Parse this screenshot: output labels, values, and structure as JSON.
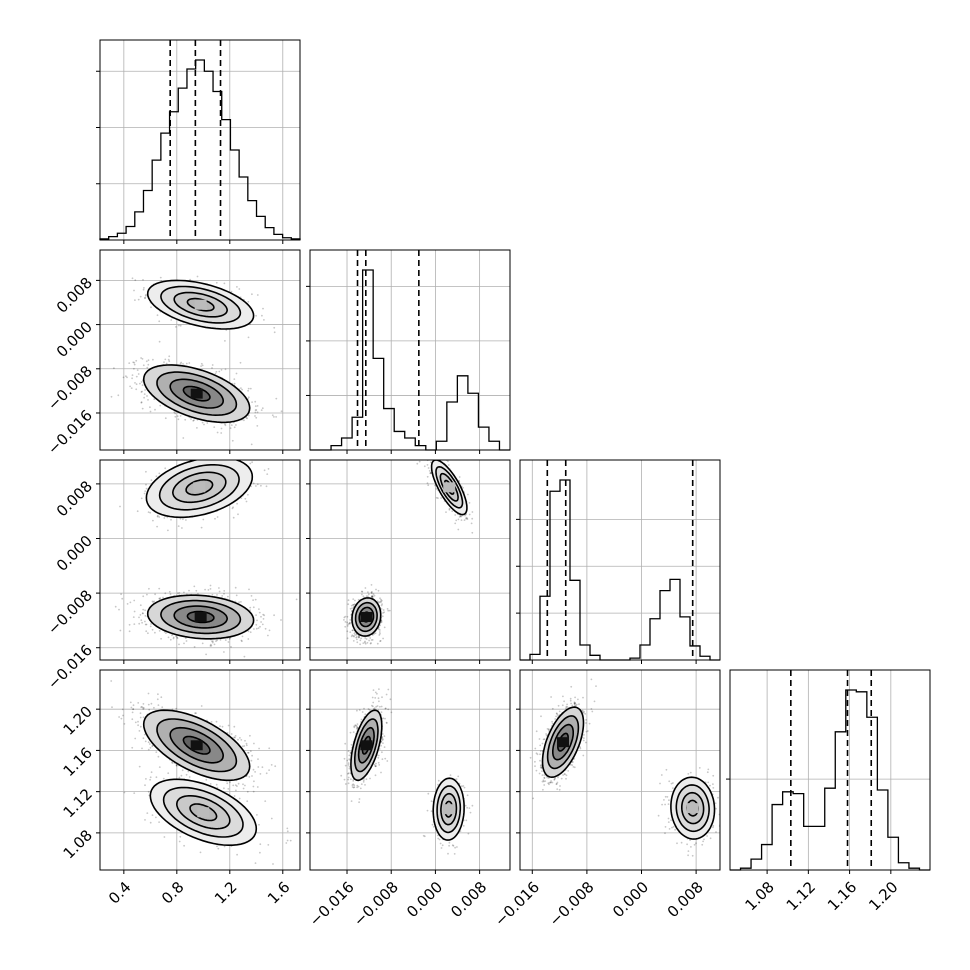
{
  "chart_data": {
    "type": "corner",
    "grid": true,
    "parameters": [
      {
        "ticks": [
          0.4,
          0.8,
          1.2,
          1.6
        ],
        "tick_labels": [
          "0.4",
          "0.8",
          "1.2",
          "1.6"
        ]
      },
      {
        "ticks": [
          -0.016,
          -0.008,
          0.0,
          0.008
        ],
        "tick_labels": [
          "−0.016",
          "−0.008",
          "0.000",
          "0.008"
        ]
      },
      {
        "ticks": [
          -0.016,
          -0.008,
          0.0,
          0.008
        ],
        "tick_labels": [
          "−0.016",
          "−0.008",
          "0.000",
          "0.008"
        ]
      },
      {
        "ticks": [
          1.08,
          1.12,
          1.16,
          1.2
        ],
        "tick_labels": [
          "1.08",
          "1.12",
          "1.16",
          "1.20"
        ]
      }
    ],
    "ranges": [
      [
        0.22,
        1.73
      ],
      [
        -0.0227,
        0.0135
      ],
      [
        -0.0178,
        0.0115
      ],
      [
        1.044,
        1.238
      ]
    ],
    "quantiles": [
      [
        0.75,
        0.94,
        1.13
      ],
      [
        -0.0141,
        -0.0126,
        -0.003
      ],
      [
        -0.0138,
        -0.0111,
        0.0075
      ],
      [
        1.103,
        1.158,
        1.181
      ]
    ],
    "histograms": [
      {
        "edges_range": [
          0.22,
          1.73
        ],
        "counts": [
          1,
          3,
          6,
          12,
          25,
          44,
          71,
          95,
          114,
          135,
          152,
          160,
          150,
          132,
          107,
          80,
          56,
          35,
          21,
          11,
          5,
          2,
          1
        ]
      },
      {
        "edges_range": [
          -0.0227,
          0.0135
        ],
        "counts": [
          0,
          0,
          4,
          11,
          30,
          165,
          84,
          38,
          17,
          11,
          4,
          0,
          8,
          44,
          68,
          52,
          21,
          8,
          0
        ]
      },
      {
        "edges_range": [
          -0.0178,
          0.0115
        ],
        "counts": [
          0,
          6,
          68,
          180,
          192,
          85,
          16,
          5,
          0,
          0,
          0,
          2,
          16,
          44,
          74,
          86,
          46,
          15,
          4,
          0
        ]
      },
      {
        "edges_range": [
          1.044,
          1.238
        ],
        "counts": [
          0,
          1,
          6,
          14,
          36,
          43,
          42,
          24,
          24,
          45,
          76,
          99,
          98,
          84,
          44,
          18,
          4,
          1,
          0
        ]
      }
    ],
    "modes": [
      {
        "row": 1,
        "col": 0,
        "components": [
          {
            "mu": [
              0.98,
              0.0036
            ],
            "sd": [
              0.2,
              0.0022
            ],
            "rho": -0.45,
            "w": 0.3
          },
          {
            "mu": [
              0.95,
              -0.0125
            ],
            "sd": [
              0.2,
              0.0026
            ],
            "rho": -0.5,
            "w": 0.7
          }
        ]
      },
      {
        "row": 2,
        "col": 0,
        "components": [
          {
            "mu": [
              0.97,
              0.0075
            ],
            "sd": [
              0.2,
              0.0022
            ],
            "rho": 0.35,
            "w": 0.3
          },
          {
            "mu": [
              0.98,
              -0.0115
            ],
            "sd": [
              0.2,
              0.0016
            ],
            "rho": -0.15,
            "w": 0.7
          }
        ]
      },
      {
        "row": 2,
        "col": 1,
        "components": [
          {
            "mu": [
              0.0025,
              0.0075
            ],
            "sd": [
              0.0016,
              0.002
            ],
            "rho": -0.75,
            "w": 0.3
          },
          {
            "mu": [
              -0.0125,
              -0.0115
            ],
            "sd": [
              0.0013,
              0.0014
            ],
            "rho": 0.1,
            "w": 0.7
          }
        ]
      },
      {
        "row": 3,
        "col": 0,
        "components": [
          {
            "mu": [
              0.95,
              1.165
            ],
            "sd": [
              0.2,
              0.017
            ],
            "rho": -0.6,
            "w": 0.7
          },
          {
            "mu": [
              1.0,
              1.1
            ],
            "sd": [
              0.2,
              0.016
            ],
            "rho": -0.5,
            "w": 0.3
          }
        ]
      },
      {
        "row": 3,
        "col": 1,
        "components": [
          {
            "mu": [
              -0.0125,
              1.165
            ],
            "sd": [
              0.0014,
              0.017
            ],
            "rho": 0.55,
            "w": 0.7
          },
          {
            "mu": [
              0.0024,
              1.103
            ],
            "sd": [
              0.0014,
              0.015
            ],
            "rho": 0.05,
            "w": 0.3
          }
        ]
      },
      {
        "row": 3,
        "col": 2,
        "components": [
          {
            "mu": [
              -0.0115,
              1.168
            ],
            "sd": [
              0.0015,
              0.017
            ],
            "rho": 0.55,
            "w": 0.7
          },
          {
            "mu": [
              0.0075,
              1.104
            ],
            "sd": [
              0.0016,
              0.015
            ],
            "rho": -0.05,
            "w": 0.3
          }
        ]
      }
    ],
    "contour_levels_sigma": [
      0.5,
      1.0,
      1.5,
      2.0
    ]
  }
}
